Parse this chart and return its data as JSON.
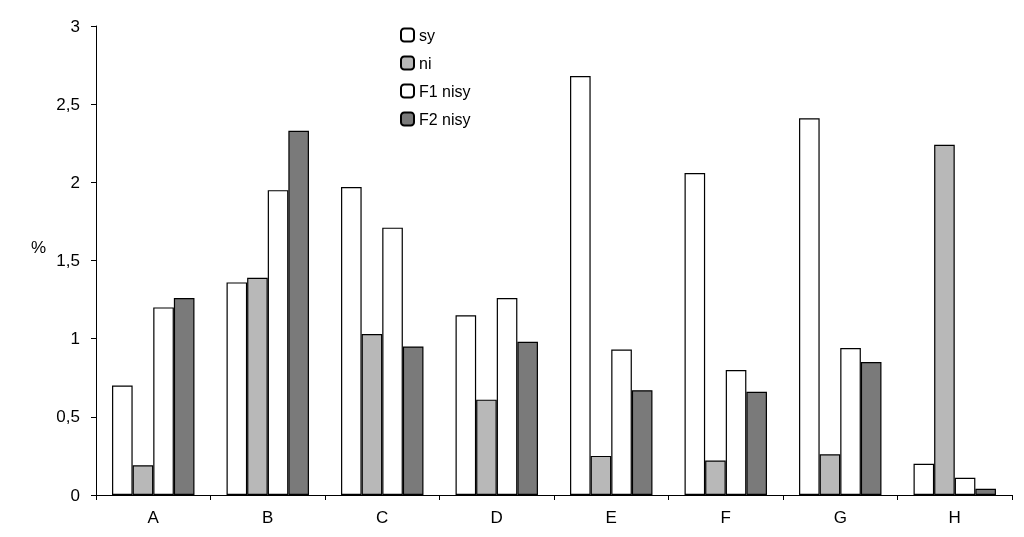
{
  "chart_data": {
    "type": "bar",
    "ylabel": "%",
    "categories": [
      "A",
      "B",
      "C",
      "D",
      "E",
      "F",
      "G",
      "H"
    ],
    "series": [
      {
        "name": "sy",
        "color": "#ffffff",
        "values": [
          0.7,
          1.36,
          1.97,
          1.15,
          2.68,
          2.06,
          2.41,
          0.2
        ]
      },
      {
        "name": "ni",
        "color": "#b8b8b8",
        "values": [
          0.19,
          1.39,
          1.03,
          0.61,
          0.25,
          0.22,
          0.26,
          2.24
        ]
      },
      {
        "name": "F1 nisy",
        "color": "#ffffff",
        "values": [
          1.2,
          1.95,
          1.71,
          1.26,
          0.93,
          0.8,
          0.94,
          0.11
        ]
      },
      {
        "name": "F2 nisy",
        "color": "#7a7a7a",
        "values": [
          1.26,
          2.33,
          0.95,
          0.98,
          0.67,
          0.66,
          0.85,
          0.04
        ]
      }
    ],
    "ylim": [
      0,
      3
    ],
    "yticks": [
      0,
      {
        "value": 0.5,
        "label": "0,5"
      },
      1,
      {
        "value": 1.5,
        "label": "1,5"
      },
      2,
      {
        "value": 2.5,
        "label": "2,5"
      },
      3
    ],
    "grid": false,
    "legend": "top"
  }
}
